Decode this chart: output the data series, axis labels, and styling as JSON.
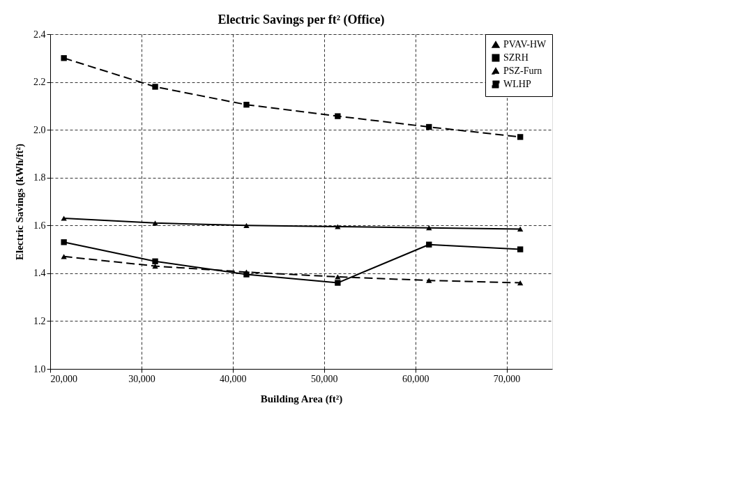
{
  "chart_data": {
    "type": "line",
    "title": "Electric Savings per ft² (Office)",
    "xlabel": "Building Area (ft²)",
    "ylabel": "Electric Savings (kWh/ft²)",
    "x": [
      21500,
      31500,
      41500,
      51500,
      61500,
      71500
    ],
    "series": [
      {
        "name": "PVAV-HW",
        "color": "#000000",
        "marker": "triangle",
        "line_style": "solid",
        "values": [
          1.63,
          1.61,
          1.6,
          1.595,
          1.59,
          1.585
        ]
      },
      {
        "name": "SZRH",
        "color": "#000000",
        "marker": "square",
        "line_style": "solid",
        "values": [
          1.53,
          1.45,
          1.395,
          1.36,
          1.52,
          1.5
        ]
      },
      {
        "name": "PSZ-Furn",
        "color": "#000000",
        "marker": "triangle",
        "line_style": "dashed",
        "values": [
          1.47,
          1.43,
          1.405,
          1.385,
          1.37,
          1.36
        ]
      },
      {
        "name": "WLHP",
        "color": "#000000",
        "marker": "square",
        "line_style": "dashed",
        "values": [
          2.3,
          2.18,
          2.105,
          2.057,
          2.012,
          1.97
        ]
      }
    ],
    "xlim": [
      20000,
      75000
    ],
    "xticks": [
      {
        "value": 20000,
        "label": "20,000"
      },
      {
        "value": 30000,
        "label": "30,000"
      },
      {
        "value": 40000,
        "label": "40,000"
      },
      {
        "value": 50000,
        "label": "50,000"
      },
      {
        "value": 60000,
        "label": "60,000"
      },
      {
        "value": 70000,
        "label": "70,000"
      }
    ],
    "ylim": [
      1.0,
      2.4
    ],
    "yticks": [
      {
        "value": 1.0,
        "label": "1.0"
      },
      1.2,
      1.4,
      1.6,
      1.8,
      {
        "value": 2.0,
        "label": "2.0"
      },
      2.2,
      2.4
    ],
    "grid": true,
    "legend": "top right"
  }
}
